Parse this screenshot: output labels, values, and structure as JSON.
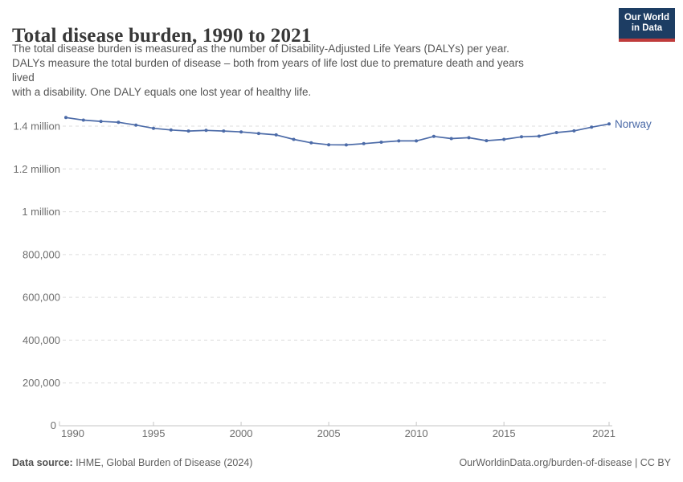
{
  "header": {
    "title": "Total disease burden, 1990 to 2021",
    "subtitle": "The total disease burden is measured as the number of Disability-Adjusted Life Years (DALYs) per year.\nDALYs measure the total burden of disease – both from years of life lost due to premature death and years\nlived\nwith a disability. One DALY equals one lost year of healthy life.",
    "logo": {
      "line1": "Our World",
      "line2": "in Data",
      "bg_color": "#1d3d63",
      "stripe_color": "#bf3b3b"
    }
  },
  "chart_data": {
    "type": "line",
    "title": "Total disease burden, 1990 to 2021",
    "grid": "horizontal-dashed",
    "legend": "end-of-line-label",
    "xlim": [
      1990,
      2021
    ],
    "ylim": [
      0,
      1450000
    ],
    "x": [
      1990,
      1991,
      1992,
      1993,
      1994,
      1995,
      1996,
      1997,
      1998,
      1999,
      2000,
      2001,
      2002,
      2003,
      2004,
      2005,
      2006,
      2007,
      2008,
      2009,
      2010,
      2011,
      2012,
      2013,
      2014,
      2015,
      2016,
      2017,
      2018,
      2019,
      2020,
      2021
    ],
    "series": [
      {
        "name": "Norway",
        "color": "#4C6BA8",
        "values": [
          1440000,
          1428000,
          1422000,
          1418000,
          1405000,
          1390000,
          1382000,
          1377000,
          1380000,
          1377000,
          1373000,
          1366000,
          1359000,
          1338000,
          1322000,
          1313000,
          1312000,
          1318000,
          1325000,
          1331000,
          1331000,
          1352000,
          1342000,
          1346000,
          1332000,
          1338000,
          1350000,
          1353000,
          1370000,
          1378000,
          1395000,
          1410000
        ]
      }
    ],
    "yticks": [
      {
        "value": 0,
        "label": "0"
      },
      {
        "value": 200000,
        "label": "200,000"
      },
      {
        "value": 400000,
        "label": "400,000"
      },
      {
        "value": 600000,
        "label": "600,000"
      },
      {
        "value": 800000,
        "label": "800,000"
      },
      {
        "value": 1000000,
        "label": "1 million"
      },
      {
        "value": 1200000,
        "label": "1.2 million"
      },
      {
        "value": 1400000,
        "label": "1.4 million"
      }
    ],
    "xticks": [
      {
        "value": 1990,
        "label": "1990"
      },
      {
        "value": 1995,
        "label": "1995"
      },
      {
        "value": 2000,
        "label": "2000"
      },
      {
        "value": 2005,
        "label": "2005"
      },
      {
        "value": 2010,
        "label": "2010"
      },
      {
        "value": 2015,
        "label": "2015"
      },
      {
        "value": 2021,
        "label": "2021"
      }
    ]
  },
  "footer": {
    "source_label": "Data source:",
    "source_value": " IHME, Global Burden of Disease (2024)",
    "credit": "OurWorldinData.org/burden-of-disease | CC BY"
  }
}
